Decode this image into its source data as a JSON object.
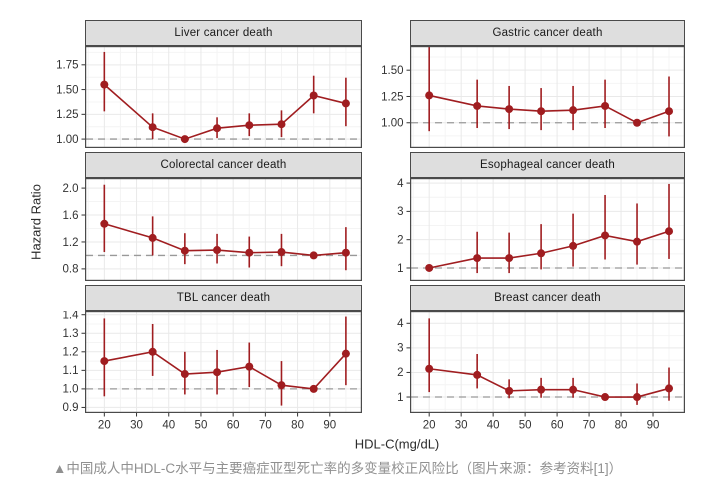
{
  "figure": {
    "caption": "▲中国成人中HDL-C水平与主要癌症亚型死亡率的多变量校正风险比（图片来源：参考资料[1]）"
  },
  "colors": {
    "series": "#A01D20",
    "strip_bg": "#DEDEDE",
    "border": "#4A4A4A",
    "grid_major": "#E9E9E9",
    "grid_minor": "#F4F4F4",
    "ref_line": "#999999",
    "tick_text": "#333333",
    "caption_text": "#909090"
  },
  "chart_data": {
    "type": "line",
    "xlabel": "HDL-C(mg/dL)",
    "ylabel": "Hazard Ratio",
    "x": [
      20,
      35,
      45,
      55,
      65,
      75,
      85,
      95
    ],
    "x_tick_values": [
      20,
      30,
      40,
      50,
      60,
      70,
      80,
      90
    ],
    "x_tick_labels": [
      "20",
      "30",
      "40",
      "50",
      "60",
      "70",
      "80",
      "90"
    ],
    "x_range": [
      14,
      100
    ],
    "ref_line_y": 1.0,
    "grid": true,
    "legend": null,
    "panels": [
      {
        "title": "Liver cancer death",
        "reference_x": 45,
        "y": [
          1.55,
          1.12,
          1.0,
          1.11,
          1.14,
          1.15,
          1.44,
          1.36
        ],
        "ci_low": [
          1.28,
          1.0,
          1.0,
          1.01,
          1.03,
          1.02,
          1.26,
          1.13
        ],
        "ci_high": [
          1.88,
          1.26,
          1.0,
          1.22,
          1.26,
          1.29,
          1.64,
          1.62
        ],
        "y_ticks": [
          1.0,
          1.25,
          1.5,
          1.75
        ],
        "y_tick_labels": [
          "1.00",
          "1.25",
          "1.50",
          "1.75"
        ],
        "ylim": [
          0.91,
          1.94
        ]
      },
      {
        "title": "Gastric cancer death",
        "reference_x": 85,
        "y": [
          1.26,
          1.16,
          1.13,
          1.11,
          1.12,
          1.16,
          1.0,
          1.11
        ],
        "ci_low": [
          0.92,
          0.95,
          0.94,
          0.93,
          0.93,
          0.95,
          1.0,
          0.87
        ],
        "ci_high": [
          1.72,
          1.41,
          1.35,
          1.33,
          1.35,
          1.41,
          1.0,
          1.44
        ],
        "y_ticks": [
          1.0,
          1.25,
          1.5
        ],
        "y_tick_labels": [
          "1.00",
          "1.25",
          "1.50"
        ],
        "ylim": [
          0.76,
          1.73
        ]
      },
      {
        "title": "Colorectal cancer death",
        "reference_x": 85,
        "y": [
          1.47,
          1.26,
          1.07,
          1.08,
          1.04,
          1.05,
          1.0,
          1.04
        ],
        "ci_low": [
          1.05,
          1.0,
          0.87,
          0.88,
          0.82,
          0.84,
          1.0,
          0.78
        ],
        "ci_high": [
          2.05,
          1.58,
          1.33,
          1.32,
          1.28,
          1.32,
          1.0,
          1.42
        ],
        "y_ticks": [
          0.8,
          1.2,
          1.6,
          2.0
        ],
        "y_tick_labels": [
          "0.8",
          "1.2",
          "1.6",
          "2.0"
        ],
        "ylim": [
          0.62,
          2.15
        ]
      },
      {
        "title": "Esophageal cancer death",
        "reference_x": 20,
        "y": [
          1.0,
          1.35,
          1.35,
          1.52,
          1.78,
          2.15,
          1.93,
          2.3
        ],
        "ci_low": [
          1.0,
          0.82,
          0.82,
          0.95,
          1.05,
          1.3,
          1.12,
          1.32
        ],
        "ci_high": [
          1.0,
          2.28,
          2.25,
          2.55,
          2.92,
          3.58,
          3.28,
          3.97
        ],
        "y_ticks": [
          1,
          2,
          3,
          4
        ],
        "y_tick_labels": [
          "1",
          "2",
          "3",
          "4"
        ],
        "ylim": [
          0.54,
          4.18
        ]
      },
      {
        "title": "TBL cancer death",
        "reference_x": 85,
        "y": [
          1.15,
          1.2,
          1.08,
          1.09,
          1.12,
          1.02,
          1.0,
          1.19
        ],
        "ci_low": [
          0.96,
          1.07,
          0.97,
          0.97,
          1.01,
          0.91,
          1.0,
          1.02
        ],
        "ci_high": [
          1.38,
          1.35,
          1.2,
          1.21,
          1.25,
          1.15,
          1.0,
          1.39
        ],
        "y_ticks": [
          0.9,
          1.0,
          1.1,
          1.2,
          1.3,
          1.4
        ],
        "y_tick_labels": [
          "0.9",
          "1.0",
          "1.1",
          "1.2",
          "1.3",
          "1.4"
        ],
        "ylim": [
          0.87,
          1.42
        ]
      },
      {
        "title": "Breast cancer death",
        "reference_x": 75,
        "y": [
          2.15,
          1.9,
          1.25,
          1.3,
          1.3,
          1.0,
          1.0,
          1.35
        ],
        "ci_low": [
          1.2,
          1.35,
          0.95,
          0.97,
          0.97,
          1.0,
          0.68,
          0.85
        ],
        "ci_high": [
          4.2,
          2.75,
          1.72,
          1.78,
          1.78,
          1.0,
          1.55,
          2.2
        ],
        "y_ticks": [
          1,
          2,
          3,
          4
        ],
        "y_tick_labels": [
          "1",
          "2",
          "3",
          "4"
        ],
        "ylim": [
          0.35,
          4.5
        ]
      }
    ]
  }
}
